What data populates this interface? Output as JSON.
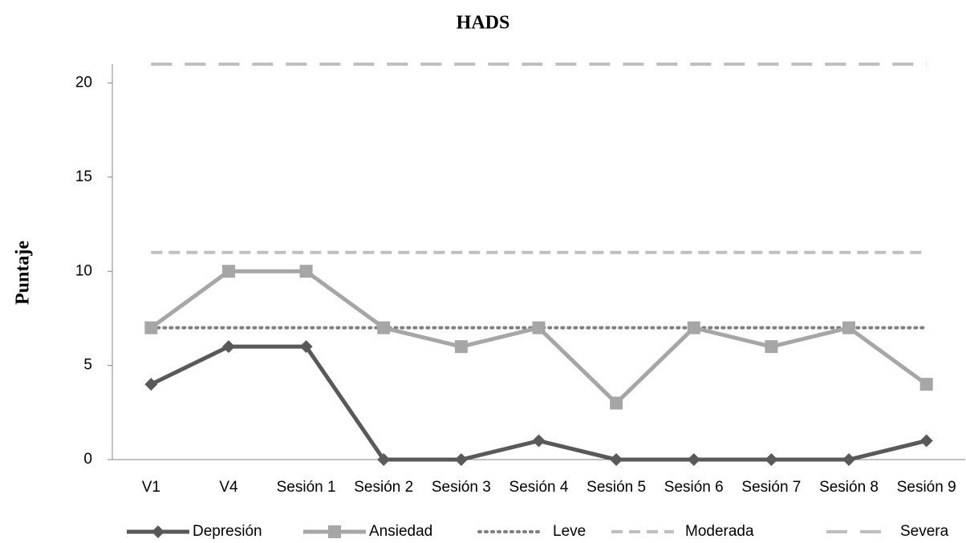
{
  "chart_data": {
    "type": "line",
    "title": "HADS",
    "y_label": "Puntaje",
    "categories": [
      "V1",
      "V4",
      "Sesión 1",
      "Sesión 2",
      "Sesión 3",
      "Sesión 4",
      "Sesión 5",
      "Sesión 6",
      "Sesión 7",
      "Sesión 8",
      "Sesión 9"
    ],
    "series": [
      {
        "name": "Depresión",
        "color": "#595959",
        "line_style": "solid",
        "marker": "diamond",
        "values": [
          4,
          6,
          6,
          0,
          0,
          1,
          0,
          0,
          0,
          0,
          1
        ]
      },
      {
        "name": "Ansiedad",
        "color": "#a6a6a6",
        "line_style": "solid",
        "marker": "square",
        "values": [
          7,
          10,
          10,
          7,
          6,
          7,
          3,
          7,
          6,
          7,
          4
        ]
      },
      {
        "name": "Leve",
        "color": "#7f7f7f",
        "line_style": "dotted",
        "marker": "none",
        "values": [
          7,
          7,
          7,
          7,
          7,
          7,
          7,
          7,
          7,
          7,
          7
        ]
      },
      {
        "name": "Moderada",
        "color": "#bfbfbf",
        "line_style": "dashed",
        "marker": "none",
        "values": [
          11,
          11,
          11,
          11,
          11,
          11,
          11,
          11,
          11,
          11,
          11
        ]
      },
      {
        "name": "Severa",
        "color": "#bfbfbf",
        "line_style": "longdash",
        "marker": "none",
        "values": [
          21,
          21,
          21,
          21,
          21,
          21,
          21,
          21,
          21,
          21,
          21
        ]
      }
    ],
    "ylim": [
      0,
      21
    ],
    "yticks": [
      0,
      5,
      10,
      15,
      20
    ],
    "legend": "bottom"
  }
}
